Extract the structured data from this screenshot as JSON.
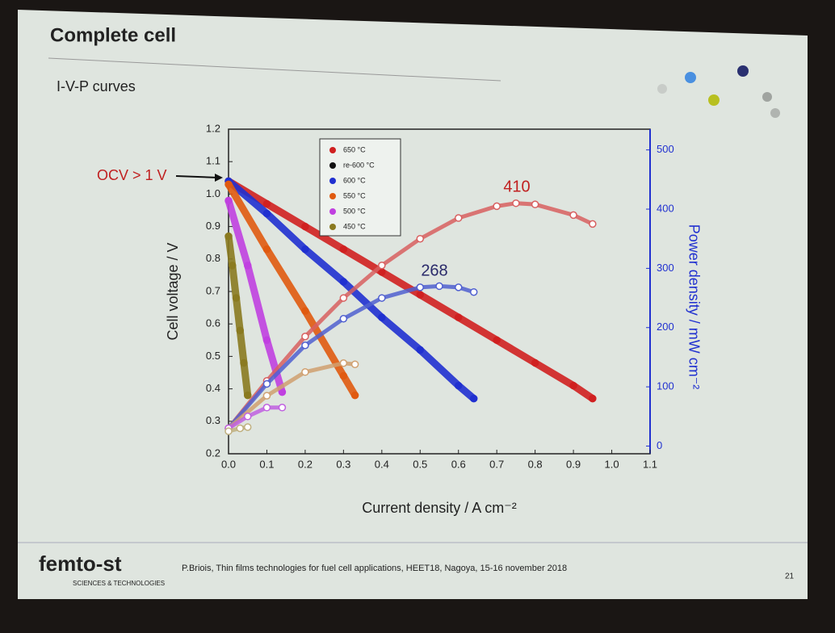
{
  "slide": {
    "title": "Complete cell",
    "subtitle": "I-V-P curves",
    "logo": "femto-st",
    "logo_sub": "SCIENCES & TECHNOLOGIES",
    "footer": "P.Briois, Thin films technologies  for fuel cell applications, HEET18,  Nagoya,  15-16 november  2018",
    "page": "21"
  },
  "chart_data": {
    "type": "line",
    "xlabel": "Current density / A cm⁻²",
    "ylabel": "Cell voltage / V",
    "y2label": "Power density / mW cm⁻²",
    "xlim": [
      0,
      1.1
    ],
    "ylim": [
      0.2,
      1.2
    ],
    "y2lim": [
      -13,
      535
    ],
    "xticks": [
      {
        "value": 0,
        "label": "0.0"
      },
      0.1,
      0.2,
      0.3,
      0.4,
      0.5,
      0.6,
      0.7,
      0.8,
      0.9,
      {
        "value": 1,
        "label": "1.0"
      },
      1.1
    ],
    "yticks": [
      0.2,
      0.3,
      0.4,
      0.5,
      0.6,
      0.7,
      0.8,
      0.9,
      {
        "value": 1,
        "label": "1.0"
      },
      1.1,
      1.2
    ],
    "y2ticks": [
      0,
      100,
      200,
      300,
      400,
      500
    ],
    "legend": [
      {
        "label": "650 °C",
        "color": "#d02020"
      },
      {
        "label": "re-600 °C",
        "color": "#111111"
      },
      {
        "label": "600 °C",
        "color": "#2030d0"
      },
      {
        "label": "550 °C",
        "color": "#e05a10"
      },
      {
        "label": "500 °C",
        "color": "#c040e0"
      },
      {
        "label": "450 °C",
        "color": "#8a7a20"
      }
    ],
    "annotations": [
      {
        "text": "OCV > 1 V"
      },
      {
        "text": "410"
      },
      {
        "text": "268"
      }
    ],
    "series": [
      {
        "color": "#d02020",
        "axis": "y",
        "x": [
          0,
          0.1,
          0.2,
          0.3,
          0.4,
          0.5,
          0.6,
          0.7,
          0.8,
          0.9,
          0.95
        ],
        "values": [
          1.04,
          0.97,
          0.9,
          0.83,
          0.76,
          0.69,
          0.62,
          0.55,
          0.48,
          0.41,
          0.37
        ]
      },
      {
        "color": "#2030d0",
        "axis": "y",
        "x": [
          0,
          0.1,
          0.2,
          0.3,
          0.4,
          0.5,
          0.6,
          0.64
        ],
        "values": [
          1.04,
          0.94,
          0.83,
          0.73,
          0.62,
          0.52,
          0.41,
          0.37
        ]
      },
      {
        "color": "#e05a10",
        "axis": "y",
        "x": [
          0,
          0.1,
          0.2,
          0.3,
          0.33
        ],
        "values": [
          1.03,
          0.83,
          0.64,
          0.44,
          0.38
        ]
      },
      {
        "color": "#c040e0",
        "axis": "y",
        "x": [
          0,
          0.05,
          0.1,
          0.14
        ],
        "values": [
          0.98,
          0.78,
          0.55,
          0.39
        ]
      },
      {
        "color": "#8a7a20",
        "axis": "y",
        "x": [
          0,
          0.01,
          0.02,
          0.03,
          0.04,
          0.05
        ],
        "values": [
          0.87,
          0.78,
          0.68,
          0.58,
          0.48,
          0.38
        ]
      },
      {
        "color": "#d86060",
        "axis": "y2",
        "x": [
          0,
          0.1,
          0.2,
          0.3,
          0.4,
          0.5,
          0.6,
          0.7,
          0.75,
          0.8,
          0.9,
          0.95
        ],
        "values": [
          30,
          110,
          185,
          250,
          305,
          350,
          385,
          405,
          410,
          408,
          390,
          375
        ]
      },
      {
        "color": "#5060d0",
        "axis": "y2",
        "x": [
          0,
          0.1,
          0.2,
          0.3,
          0.4,
          0.5,
          0.55,
          0.6,
          0.64
        ],
        "values": [
          30,
          105,
          170,
          215,
          250,
          268,
          270,
          268,
          260
        ]
      },
      {
        "color": "#d0a070",
        "axis": "y2",
        "x": [
          0,
          0.1,
          0.2,
          0.3,
          0.33
        ],
        "values": [
          30,
          85,
          125,
          140,
          138
        ]
      },
      {
        "color": "#c060e0",
        "axis": "y2",
        "x": [
          0,
          0.05,
          0.1,
          0.14
        ],
        "values": [
          30,
          50,
          65,
          65
        ]
      },
      {
        "color": "#c0b080",
        "axis": "y2",
        "x": [
          0,
          0.03,
          0.05
        ],
        "values": [
          25,
          30,
          32
        ]
      }
    ]
  }
}
